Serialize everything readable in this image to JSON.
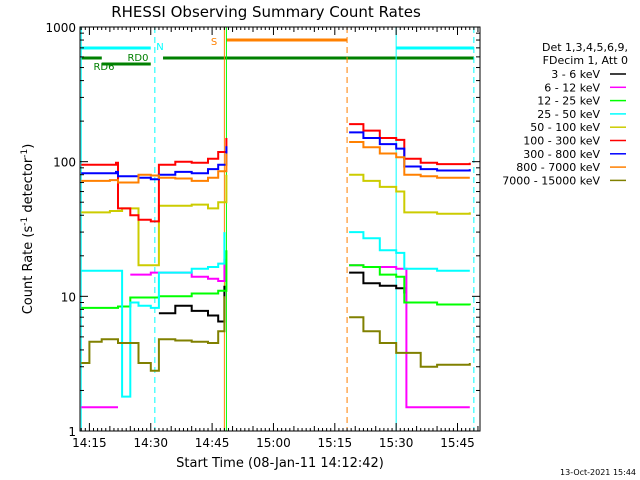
{
  "chart_data": {
    "type": "line",
    "title": "RHESSI Observing Summary Count Rates",
    "xlabel": "Start Time (08-Jan-11 14:12:42)",
    "ylabel": "Count Rate (s",
    "ylabel_sup": "-1",
    "ylabel_mid": " detector",
    "ylabel_tail": ")",
    "footer": "13-Oct-2021 15:44",
    "y_scale": "log",
    "xlim": [
      "14:12:42",
      "15:50:30"
    ],
    "ylim": [
      1,
      1000
    ],
    "x_ticks": [
      "14:15",
      "14:30",
      "14:45",
      "15:00",
      "15:15",
      "15:30",
      "15:45"
    ],
    "y_ticks": [
      "1",
      "10",
      "100",
      "1000"
    ],
    "legend": {
      "position": "right",
      "header": [
        "Det 1,3,4,5,6,9,",
        "FDecim 1, Att 0"
      ],
      "entries": [
        {
          "label": "3 - 6 keV",
          "color": "#000000"
        },
        {
          "label": "6 - 12 keV",
          "color": "#ff00ff"
        },
        {
          "label": "12 - 25 keV",
          "color": "#00ff00"
        },
        {
          "label": "25 - 50 keV",
          "color": "#00ffff"
        },
        {
          "label": "50 - 100 keV",
          "color": "#cccc00"
        },
        {
          "label": "100 - 300 keV",
          "color": "#ff0000"
        },
        {
          "label": "300 - 800 keV",
          "color": "#0000ff"
        },
        {
          "label": "800 - 7000 keV",
          "color": "#ff8000"
        },
        {
          "label": "7000 - 15000 keV",
          "color": "#808000"
        }
      ]
    },
    "flag_labels": [
      {
        "text": "N",
        "color": "#00ffff"
      },
      {
        "text": "S",
        "color": "#ff8000"
      },
      {
        "text": "RD0",
        "color": "#008000"
      },
      {
        "text": "RD6",
        "color": "#008000"
      }
    ],
    "series": [
      {
        "name": "3 - 6 keV",
        "color": "#000000",
        "segments": [
          {
            "x": [
              "14:32",
              "14:36",
              "14:40",
              "14:44",
              "14:46:30",
              "14:48"
            ],
            "y": [
              7.5,
              8.5,
              7.8,
              7.2,
              6.5,
              12
            ]
          },
          {
            "x": [
              "15:18:30",
              "15:22",
              "15:26",
              "15:30",
              "15:32"
            ],
            "y": [
              15,
              12.5,
              12,
              11.5,
              10.5
            ]
          }
        ]
      },
      {
        "name": "6 - 12 keV",
        "color": "#ff00ff",
        "segments": [
          {
            "x": [
              "14:13",
              "14:22"
            ],
            "y": [
              1.5,
              1.5
            ]
          },
          {
            "x": [
              "14:25",
              "14:30",
              "14:32",
              "14:40",
              "14:44",
              "14:46:30",
              "14:48"
            ],
            "y": [
              14.5,
              15,
              15,
              14,
              13.5,
              13,
              19
            ]
          },
          {
            "x": [
              "15:18:30",
              "15:22",
              "15:30",
              "15:32:30",
              "15:32:30",
              "15:48"
            ],
            "y": [
              17,
              16.5,
              16,
              16,
              1.5,
              1.5
            ]
          }
        ]
      },
      {
        "name": "12 - 25 keV",
        "color": "#00ff00",
        "segments": [
          {
            "x": [
              "14:13",
              "14:22",
              "14:25",
              "14:32",
              "14:40",
              "14:44",
              "14:46:30",
              "14:48:30"
            ],
            "y": [
              8.2,
              8.4,
              9.8,
              10,
              10.5,
              10.5,
              11,
              22
            ]
          },
          {
            "x": [
              "15:18:30",
              "15:22",
              "15:26",
              "15:30",
              "15:32",
              "15:40",
              "15:48"
            ],
            "y": [
              17,
              16.5,
              14.5,
              14,
              9,
              8.7,
              8.6
            ]
          }
        ]
      },
      {
        "name": "25 - 50 keV",
        "color": "#00ffff",
        "segments": [
          {
            "x": [
              "14:13",
              "14:21:30",
              "14:23",
              "14:25",
              "14:27",
              "14:30",
              "14:32",
              "14:40",
              "14:44",
              "14:46:30",
              "14:48"
            ],
            "y": [
              15.5,
              15.5,
              1.8,
              9,
              8.5,
              8.2,
              15,
              16,
              16.5,
              17.5,
              30
            ]
          },
          {
            "x": [
              "15:18:30",
              "15:22",
              "15:26",
              "15:30",
              "15:32",
              "15:40",
              "15:48"
            ],
            "y": [
              30,
              27,
              22,
              21,
              16,
              15.5,
              15.5
            ]
          }
        ]
      },
      {
        "name": "50 - 100 keV",
        "color": "#cccc00",
        "segments": [
          {
            "x": [
              "14:13",
              "14:20",
              "14:23",
              "14:27",
              "14:32",
              "14:40",
              "14:44",
              "14:46:30",
              "14:48:30"
            ],
            "y": [
              42,
              43,
              45,
              17,
              47,
              48,
              45,
              50,
              80
            ]
          },
          {
            "x": [
              "15:18:30",
              "15:22",
              "15:26",
              "15:30",
              "15:32",
              "15:40",
              "15:48"
            ],
            "y": [
              80,
              72,
              65,
              60,
              42,
              41,
              42
            ]
          }
        ]
      },
      {
        "name": "100 - 300 keV",
        "color": "#ff0000",
        "segments": [
          {
            "x": [
              "14:13",
              "14:21:30",
              "14:22",
              "14:25",
              "14:27",
              "14:30",
              "14:32",
              "14:36",
              "14:40",
              "14:44",
              "14:46:30",
              "14:48:30"
            ],
            "y": [
              95,
              98,
              45,
              40,
              37,
              36,
              95,
              100,
              98,
              105,
              118,
              150
            ]
          },
          {
            "x": [
              "15:18:30",
              "15:22",
              "15:26",
              "15:30",
              "15:32",
              "15:36",
              "15:40",
              "15:48"
            ],
            "y": [
              190,
              170,
              150,
              145,
              105,
              98,
              96,
              98
            ]
          }
        ]
      },
      {
        "name": "300 - 800 keV",
        "color": "#0000ff",
        "segments": [
          {
            "x": [
              "14:13",
              "14:21:30",
              "14:22",
              "14:27",
              "14:30",
              "14:32",
              "14:36",
              "14:40",
              "14:44",
              "14:46:30",
              "14:48:30"
            ],
            "y": [
              82,
              84,
              78,
              76,
              74,
              80,
              84,
              82,
              88,
              95,
              130
            ]
          },
          {
            "x": [
              "15:18:30",
              "15:22",
              "15:26",
              "15:30",
              "15:32",
              "15:36",
              "15:40",
              "15:48"
            ],
            "y": [
              165,
              150,
              135,
              125,
              92,
              88,
              86,
              88
            ]
          }
        ]
      },
      {
        "name": "800 - 7000 keV",
        "color": "#ff8000",
        "segments": [
          {
            "x": [
              "14:13",
              "14:20",
              "14:22",
              "14:27",
              "14:30",
              "14:32",
              "14:36",
              "14:40",
              "14:44",
              "14:46:30",
              "14:48:30"
            ],
            "y": [
              72,
              73,
              70,
              80,
              79,
              76,
              75,
              72,
              76,
              85,
              115
            ]
          },
          {
            "x": [
              "15:18:30",
              "15:22",
              "15:26",
              "15:30",
              "15:32",
              "15:36",
              "15:40",
              "15:48"
            ],
            "y": [
              140,
              128,
              115,
              108,
              80,
              78,
              76,
              76
            ]
          }
        ]
      },
      {
        "name": "7000 - 15000 keV",
        "color": "#808000",
        "segments": [
          {
            "x": [
              "14:13",
              "14:15",
              "14:18",
              "14:22",
              "14:27",
              "14:30",
              "14:32",
              "14:36",
              "14:40",
              "14:44",
              "14:46:30",
              "14:48"
            ],
            "y": [
              3.2,
              4.6,
              4.8,
              4.5,
              3.2,
              2.8,
              4.8,
              4.7,
              4.6,
              4.5,
              5.5,
              10
            ]
          },
          {
            "x": [
              "15:18:30",
              "15:22",
              "15:26",
              "15:30",
              "15:36",
              "15:40",
              "15:48"
            ],
            "y": [
              7,
              5.5,
              4.5,
              3.8,
              3,
              3.1,
              3.2
            ]
          }
        ]
      }
    ],
    "markers": [
      {
        "kind": "vline",
        "x": "14:13",
        "color": "#00ffff",
        "dashed": false
      },
      {
        "kind": "vline",
        "x": "14:31",
        "color": "#00ffff",
        "dashed": true
      },
      {
        "kind": "vline",
        "x": "14:48",
        "color": "#ff8000",
        "dashed": false
      },
      {
        "kind": "vline",
        "x": "14:48:30",
        "color": "#00ff00",
        "dashed": false
      },
      {
        "kind": "vline",
        "x": "15:18",
        "color": "#ff8000",
        "dashed": true
      },
      {
        "kind": "vline",
        "x": "15:30",
        "color": "#00ffff",
        "dashed": false
      },
      {
        "kind": "vline",
        "x": "15:49",
        "color": "#00ffff",
        "dashed": true
      }
    ],
    "flag_bars": [
      {
        "label": "N",
        "color": "#00ffff",
        "ranges": [
          [
            "14:13",
            "14:30"
          ],
          [
            "15:30",
            "15:49"
          ]
        ],
        "level": 1
      },
      {
        "label": "S",
        "color": "#ff8000",
        "ranges": [
          [
            "14:48:30",
            "15:18"
          ]
        ],
        "level": 0
      },
      {
        "label": "RD0",
        "color": "#008000",
        "ranges": [
          [
            "14:18",
            "14:30"
          ]
        ],
        "level": 3
      },
      {
        "label": "RD6",
        "color": "#008000",
        "ranges": [
          [
            "14:13",
            "14:18"
          ]
        ],
        "level": 2
      },
      {
        "label": "",
        "color": "#008000",
        "ranges": [
          [
            "14:13",
            "14:18"
          ],
          [
            "14:33",
            "15:49"
          ]
        ],
        "level": 2
      }
    ]
  }
}
